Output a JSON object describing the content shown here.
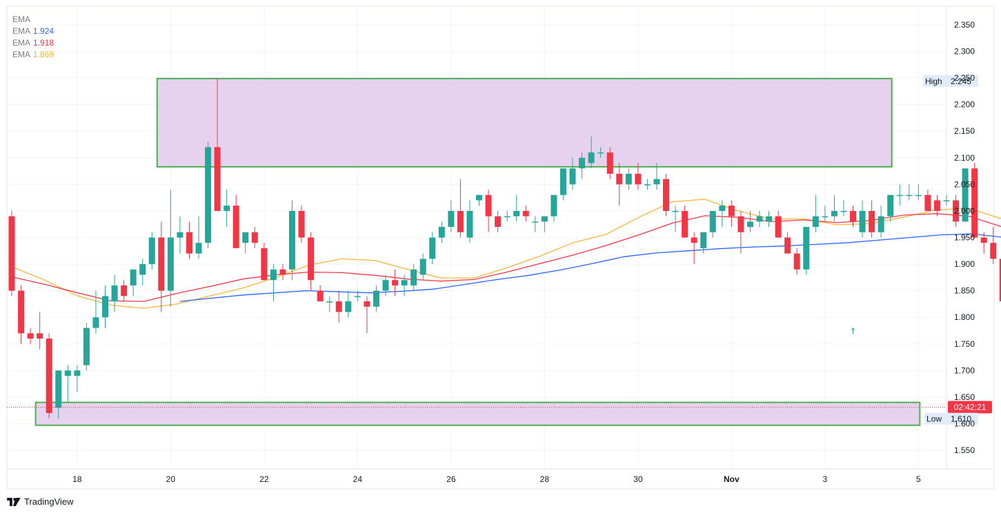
{
  "legend": {
    "title": "EMA",
    "rows": [
      {
        "label": "EMA",
        "value": "1.924",
        "color": "#2962ff"
      },
      {
        "label": "EMA",
        "value": "1.918",
        "color": "#f23645"
      },
      {
        "label": "EMA",
        "value": "1.869",
        "color": "#f5b638"
      }
    ]
  },
  "brand": "TradingView",
  "colors": {
    "up": "#26a69a",
    "down": "#f23645",
    "grid": "#f0f3fa",
    "zone_fill": "#e6d2ef",
    "zone_border": "#4caf50"
  },
  "chart_data": {
    "type": "candlestick",
    "y_range": [
      1.515,
      2.385
    ],
    "y_ticks": [
      "1.550",
      "1.600",
      "1.650",
      "1.700",
      "1.750",
      "1.800",
      "1.850",
      "1.900",
      "1.950",
      "2.000",
      "2.050",
      "2.100",
      "2.150",
      "2.200",
      "2.250",
      "2.300",
      "2.350"
    ],
    "x_ticks": [
      {
        "index": 7,
        "label": "18"
      },
      {
        "index": 17,
        "label": "20"
      },
      {
        "index": 27,
        "label": "22"
      },
      {
        "index": 37,
        "label": "24"
      },
      {
        "index": 47,
        "label": "26"
      },
      {
        "index": 57,
        "label": "28"
      },
      {
        "index": 67,
        "label": "30"
      },
      {
        "index": 77,
        "label": "Nov",
        "bold": true
      },
      {
        "index": 87,
        "label": "3"
      },
      {
        "index": 97,
        "label": "5"
      }
    ],
    "candles": [
      [
        1.99,
        2.0,
        1.84,
        1.85
      ],
      [
        1.85,
        1.86,
        1.75,
        1.77
      ],
      [
        1.77,
        1.78,
        1.75,
        1.76
      ],
      [
        1.77,
        1.81,
        1.74,
        1.76
      ],
      [
        1.76,
        1.77,
        1.61,
        1.62
      ],
      [
        1.63,
        1.7,
        1.61,
        1.7
      ],
      [
        1.69,
        1.71,
        1.64,
        1.7
      ],
      [
        1.69,
        1.71,
        1.66,
        1.7
      ],
      [
        1.71,
        1.79,
        1.7,
        1.78
      ],
      [
        1.78,
        1.85,
        1.77,
        1.8
      ],
      [
        1.8,
        1.86,
        1.78,
        1.84
      ],
      [
        1.83,
        1.88,
        1.81,
        1.86
      ],
      [
        1.86,
        1.87,
        1.83,
        1.84
      ],
      [
        1.86,
        1.89,
        1.84,
        1.89
      ],
      [
        1.88,
        1.91,
        1.86,
        1.9
      ],
      [
        1.9,
        1.96,
        1.89,
        1.95
      ],
      [
        1.95,
        1.98,
        1.81,
        1.85
      ],
      [
        1.85,
        2.04,
        1.82,
        1.95
      ],
      [
        1.95,
        1.99,
        1.92,
        1.96
      ],
      [
        1.96,
        1.98,
        1.91,
        1.92
      ],
      [
        1.92,
        1.99,
        1.91,
        1.94
      ],
      [
        1.94,
        2.13,
        1.93,
        2.12
      ],
      [
        2.12,
        2.25,
        2.0,
        2.0
      ],
      [
        2.0,
        2.04,
        1.97,
        2.01
      ],
      [
        2.01,
        2.03,
        1.93,
        1.93
      ],
      [
        1.94,
        1.96,
        1.92,
        1.96
      ],
      [
        1.96,
        1.97,
        1.93,
        1.94
      ],
      [
        1.93,
        1.94,
        1.87,
        1.87
      ],
      [
        1.87,
        1.9,
        1.83,
        1.89
      ],
      [
        1.89,
        1.9,
        1.87,
        1.88
      ],
      [
        1.89,
        2.02,
        1.87,
        2.0
      ],
      [
        2.0,
        2.01,
        1.94,
        1.95
      ],
      [
        1.95,
        1.96,
        1.85,
        1.87
      ],
      [
        1.85,
        1.86,
        1.83,
        1.83
      ],
      [
        1.83,
        1.84,
        1.81,
        1.83
      ],
      [
        1.83,
        1.85,
        1.79,
        1.81
      ],
      [
        1.81,
        1.85,
        1.8,
        1.83
      ],
      [
        1.84,
        1.85,
        1.83,
        1.84
      ],
      [
        1.83,
        1.84,
        1.77,
        1.82
      ],
      [
        1.82,
        1.86,
        1.81,
        1.85
      ],
      [
        1.85,
        1.88,
        1.84,
        1.87
      ],
      [
        1.87,
        1.89,
        1.84,
        1.86
      ],
      [
        1.86,
        1.88,
        1.84,
        1.87
      ],
      [
        1.86,
        1.9,
        1.85,
        1.89
      ],
      [
        1.88,
        1.92,
        1.87,
        1.91
      ],
      [
        1.91,
        1.96,
        1.9,
        1.95
      ],
      [
        1.95,
        1.98,
        1.94,
        1.97
      ],
      [
        1.97,
        2.02,
        1.96,
        2.0
      ],
      [
        2.0,
        2.06,
        1.95,
        1.96
      ],
      [
        1.95,
        2.02,
        1.94,
        2.0
      ],
      [
        2.02,
        2.03,
        2.01,
        2.03
      ],
      [
        2.03,
        2.04,
        1.96,
        1.99
      ],
      [
        1.99,
        2.0,
        1.96,
        1.97
      ],
      [
        1.99,
        2.0,
        1.98,
        1.99
      ],
      [
        1.99,
        2.03,
        1.98,
        2.0
      ],
      [
        2.0,
        2.01,
        1.98,
        1.99
      ],
      [
        1.98,
        1.99,
        1.96,
        1.98
      ],
      [
        1.98,
        1.99,
        1.96,
        1.99
      ],
      [
        1.99,
        2.03,
        1.98,
        2.03
      ],
      [
        2.03,
        2.08,
        2.02,
        2.08
      ],
      [
        2.05,
        2.1,
        2.04,
        2.08
      ],
      [
        2.08,
        2.11,
        2.06,
        2.1
      ],
      [
        2.09,
        2.14,
        2.08,
        2.11
      ],
      [
        2.11,
        2.12,
        2.1,
        2.11
      ],
      [
        2.11,
        2.12,
        2.06,
        2.07
      ],
      [
        2.07,
        2.09,
        2.01,
        2.05
      ],
      [
        2.05,
        2.08,
        2.04,
        2.07
      ],
      [
        2.07,
        2.09,
        2.04,
        2.05
      ],
      [
        2.05,
        2.06,
        2.04,
        2.05
      ],
      [
        2.05,
        2.09,
        2.04,
        2.06
      ],
      [
        2.06,
        2.07,
        1.99,
        2.0
      ],
      [
        2.0,
        2.01,
        1.96,
        2.0
      ],
      [
        2.0,
        2.01,
        1.95,
        1.95
      ],
      [
        1.95,
        1.96,
        1.9,
        1.94
      ],
      [
        1.93,
        1.96,
        1.92,
        1.96
      ],
      [
        1.96,
        2.0,
        1.95,
        2.0
      ],
      [
        2.0,
        2.02,
        1.97,
        2.01
      ],
      [
        2.01,
        2.02,
        1.97,
        1.99
      ],
      [
        1.99,
        2.0,
        1.92,
        1.96
      ],
      [
        1.97,
        2.0,
        1.96,
        1.98
      ],
      [
        1.98,
        2.0,
        1.97,
        1.99
      ],
      [
        1.98,
        2.0,
        1.97,
        1.99
      ],
      [
        1.99,
        2.0,
        1.95,
        1.95
      ],
      [
        1.95,
        1.96,
        1.92,
        1.92
      ],
      [
        1.92,
        1.93,
        1.88,
        1.89
      ],
      [
        1.89,
        1.97,
        1.88,
        1.97
      ],
      [
        1.97,
        2.03,
        1.96,
        1.99
      ],
      [
        1.99,
        2.01,
        1.98,
        1.99
      ],
      [
        1.99,
        2.03,
        1.98,
        2.0
      ],
      [
        2.0,
        2.02,
        1.99,
        2.0
      ],
      [
        2.0,
        2.01,
        1.97,
        1.98
      ],
      [
        1.96,
        2.02,
        1.95,
        2.0
      ],
      [
        2.0,
        2.02,
        1.95,
        1.96
      ],
      [
        1.96,
        2.01,
        1.95,
        1.99
      ],
      [
        1.99,
        2.03,
        1.98,
        2.03
      ],
      [
        2.03,
        2.05,
        2.01,
        2.03
      ],
      [
        2.03,
        2.05,
        2.02,
        2.03
      ],
      [
        2.03,
        2.05,
        2.02,
        2.03
      ],
      [
        2.03,
        2.04,
        2.0,
        2.0
      ],
      [
        2.02,
        2.03,
        1.99,
        2.0
      ],
      [
        2.02,
        2.03,
        2.01,
        2.02
      ],
      [
        2.02,
        2.03,
        1.97,
        1.98
      ],
      [
        1.98,
        2.08,
        1.98,
        2.08
      ],
      [
        2.08,
        2.09,
        1.95,
        1.95
      ],
      [
        1.95,
        1.96,
        1.92,
        1.94
      ],
      [
        1.94,
        1.97,
        1.9,
        1.91
      ],
      [
        1.91,
        1.93,
        1.8,
        1.83
      ],
      [
        1.83,
        1.85,
        1.81,
        1.84
      ],
      [
        1.83,
        1.86,
        1.81,
        1.85
      ],
      [
        1.85,
        1.88,
        1.81,
        1.87
      ],
      [
        1.87,
        1.88,
        1.68,
        1.69
      ],
      [
        1.69,
        1.7,
        1.61,
        1.63
      ],
      [
        1.63,
        1.74,
        1.61,
        1.68
      ],
      [
        1.68,
        1.7,
        1.62,
        1.63
      ]
    ],
    "ema_blue": {
      "start_index": 18,
      "values": [
        1.83,
        1.836,
        1.842,
        1.846,
        1.85,
        1.848,
        1.846,
        1.849,
        1.853,
        1.862,
        1.871,
        1.879,
        1.889,
        1.901,
        1.914,
        1.921,
        1.925,
        1.929,
        1.932,
        1.934,
        1.937,
        1.94,
        1.945,
        1.95,
        1.955,
        1.957,
        1.95,
        1.94,
        1.924
      ]
    },
    "ema_red": {
      "start_index": 0,
      "values": [
        1.876,
        1.862,
        1.846,
        1.831,
        1.83,
        1.845,
        1.858,
        1.872,
        1.88,
        1.885,
        1.884,
        1.879,
        1.872,
        1.868,
        1.871,
        1.885,
        1.901,
        1.917,
        1.935,
        1.955,
        1.977,
        1.991,
        1.988,
        1.98,
        1.983,
        1.978,
        1.982,
        1.992,
        1.995,
        1.99,
        1.97,
        1.948,
        1.918
      ]
    },
    "ema_yellow": {
      "start_index": 0,
      "values": [
        1.895,
        1.87,
        1.84,
        1.823,
        1.817,
        1.825,
        1.84,
        1.855,
        1.875,
        1.898,
        1.91,
        1.907,
        1.89,
        1.874,
        1.874,
        1.893,
        1.915,
        1.94,
        1.956,
        1.988,
        2.017,
        2.022,
        2.0,
        1.985,
        1.985,
        1.974,
        1.976,
        1.988,
        2.002,
        2.005,
        1.985,
        1.94,
        1.869
      ]
    },
    "zones": [
      {
        "top": 2.249,
        "bottom": 2.083,
        "from_index": 16,
        "to_index": 94
      },
      {
        "top": 1.64,
        "bottom": 1.597,
        "from_index": 3,
        "to_index": 97
      }
    ],
    "labels": {
      "high": {
        "label": "High",
        "value": "2.245"
      },
      "low": {
        "label": "Low",
        "value": "1.610"
      },
      "current": {
        "value": 1.631,
        "timer": "02:42:21"
      }
    },
    "arrow_marker": {
      "index": 90,
      "value": 1.775,
      "symbol": "↑"
    }
  }
}
